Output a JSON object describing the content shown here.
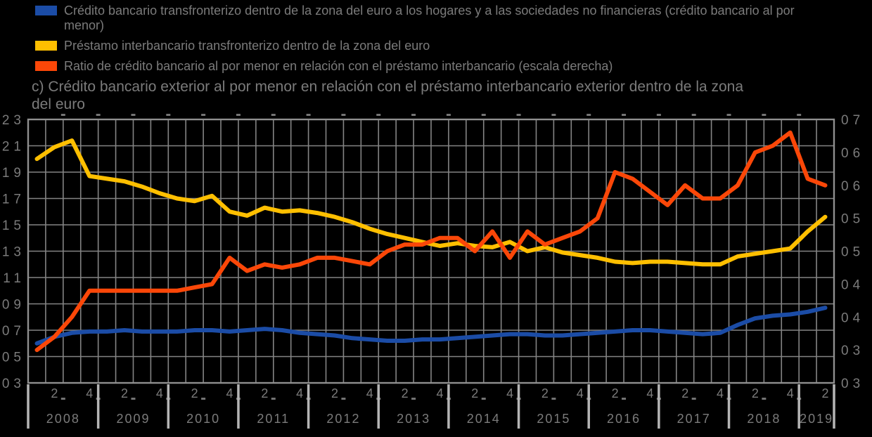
{
  "page": {
    "background": "#000000",
    "text_color": "#7b7b7b"
  },
  "title": "c) Crédito bancario exterior al por menor en relación con el préstamo interbancario exterior dentro de la zona del euro",
  "legend": {
    "items": [
      {
        "icon": "blue-swatch",
        "label": "Crédito bancario transfronterizo dentro de la zona del euro a los hogares y a las sociedades no financieras (crédito bancario al por menor)"
      },
      {
        "icon": "yellow-swatch",
        "label": "Préstamo interbancario transfronterizo dentro de la zona del euro"
      },
      {
        "icon": "orange-swatch",
        "label": "Ratio de crédito bancario al por menor en relación con el préstamo interbancario (escala derecha)"
      }
    ]
  },
  "chart_data": {
    "type": "line",
    "title": "c) Crédito bancario exterior al por menor en relación con el préstamo interbancario exterior dentro de la zona del euro",
    "grid": true,
    "legend_position": "top-left",
    "x": [
      "2008Q1",
      "2008Q2",
      "2008Q3",
      "2008Q4",
      "2009Q1",
      "2009Q2",
      "2009Q3",
      "2009Q4",
      "2010Q1",
      "2010Q2",
      "2010Q3",
      "2010Q4",
      "2011Q1",
      "2011Q2",
      "2011Q3",
      "2011Q4",
      "2012Q1",
      "2012Q2",
      "2012Q3",
      "2012Q4",
      "2013Q1",
      "2013Q2",
      "2013Q3",
      "2013Q4",
      "2014Q1",
      "2014Q2",
      "2014Q3",
      "2014Q4",
      "2015Q1",
      "2015Q2",
      "2015Q3",
      "2015Q4",
      "2016Q1",
      "2016Q2",
      "2016Q3",
      "2016Q4",
      "2017Q1",
      "2017Q2",
      "2017Q3",
      "2017Q4",
      "2018Q1",
      "2018Q2",
      "2018Q3",
      "2018Q4",
      "2019Q1",
      "2019Q2"
    ],
    "left_axis": {
      "min": 0.3,
      "max": 2.3,
      "tick_step": 0.2,
      "tick_labels": [
        "23",
        "21",
        "19",
        "17",
        "15",
        "13",
        "11",
        "09",
        "07",
        "05",
        "03"
      ]
    },
    "right_axis": {
      "min": 0.3,
      "max": 0.7,
      "tick_step": 0.05,
      "tick_labels": [
        "07",
        "06",
        "06",
        "05",
        "05",
        "04",
        "04",
        "03",
        "03"
      ]
    },
    "x_axis": {
      "quarter_tick_labels": [
        "2",
        "4"
      ],
      "years": [
        {
          "label": "2008",
          "quarters": 4
        },
        {
          "label": "2009",
          "quarters": 4
        },
        {
          "label": "2010",
          "quarters": 4
        },
        {
          "label": "2011",
          "quarters": 4
        },
        {
          "label": "2012",
          "quarters": 4
        },
        {
          "label": "2013",
          "quarters": 4
        },
        {
          "label": "2014",
          "quarters": 4
        },
        {
          "label": "2015",
          "quarters": 4
        },
        {
          "label": "2016",
          "quarters": 4
        },
        {
          "label": "2017",
          "quarters": 4
        },
        {
          "label": "2018",
          "quarters": 4
        },
        {
          "label": "2019",
          "quarters": 2
        }
      ]
    },
    "series": [
      {
        "name": "Crédito bancario transfronterizo dentro de la zona del euro a los hogares y a las sociedades no financieras (crédito bancario al por menor)",
        "axis": "left",
        "color": "#1b4ca6",
        "values": [
          0.6,
          0.65,
          0.68,
          0.69,
          0.69,
          0.7,
          0.69,
          0.69,
          0.69,
          0.7,
          0.7,
          0.69,
          0.7,
          0.71,
          0.7,
          0.68,
          0.67,
          0.66,
          0.64,
          0.63,
          0.62,
          0.62,
          0.63,
          0.63,
          0.64,
          0.65,
          0.66,
          0.67,
          0.67,
          0.66,
          0.66,
          0.67,
          0.68,
          0.69,
          0.7,
          0.7,
          0.69,
          0.68,
          0.67,
          0.68,
          0.74,
          0.79,
          0.81,
          0.82,
          0.84,
          0.87
        ]
      },
      {
        "name": "Préstamo interbancario transfronterizo dentro de la zona del euro",
        "axis": "left",
        "color": "#ffbf00",
        "values": [
          2.0,
          2.09,
          2.14,
          1.87,
          1.85,
          1.83,
          1.79,
          1.74,
          1.7,
          1.68,
          1.72,
          1.6,
          1.57,
          1.63,
          1.6,
          1.61,
          1.59,
          1.56,
          1.52,
          1.47,
          1.43,
          1.4,
          1.37,
          1.34,
          1.36,
          1.34,
          1.33,
          1.37,
          1.3,
          1.33,
          1.29,
          1.27,
          1.25,
          1.22,
          1.21,
          1.22,
          1.22,
          1.21,
          1.2,
          1.2,
          1.26,
          1.28,
          1.3,
          1.32,
          1.45,
          1.56
        ]
      },
      {
        "name": "Ratio de crédito bancario al por menor en relación con el préstamo interbancario (escala derecha)",
        "axis": "right",
        "color": "#fb4708",
        "values": [
          0.35,
          0.37,
          0.4,
          0.44,
          0.44,
          0.44,
          0.44,
          0.44,
          0.44,
          0.445,
          0.45,
          0.49,
          0.47,
          0.48,
          0.475,
          0.48,
          0.49,
          0.49,
          0.485,
          0.48,
          0.5,
          0.51,
          0.51,
          0.52,
          0.52,
          0.5,
          0.53,
          0.49,
          0.53,
          0.51,
          0.52,
          0.53,
          0.55,
          0.62,
          0.61,
          0.59,
          0.57,
          0.6,
          0.58,
          0.58,
          0.6,
          0.65,
          0.66,
          0.68,
          0.61,
          0.6
        ]
      }
    ],
    "colors": {
      "grid": "#848484",
      "border": "#8f8f8f",
      "separator": "#b5b5b5",
      "tick": "#747474"
    }
  }
}
